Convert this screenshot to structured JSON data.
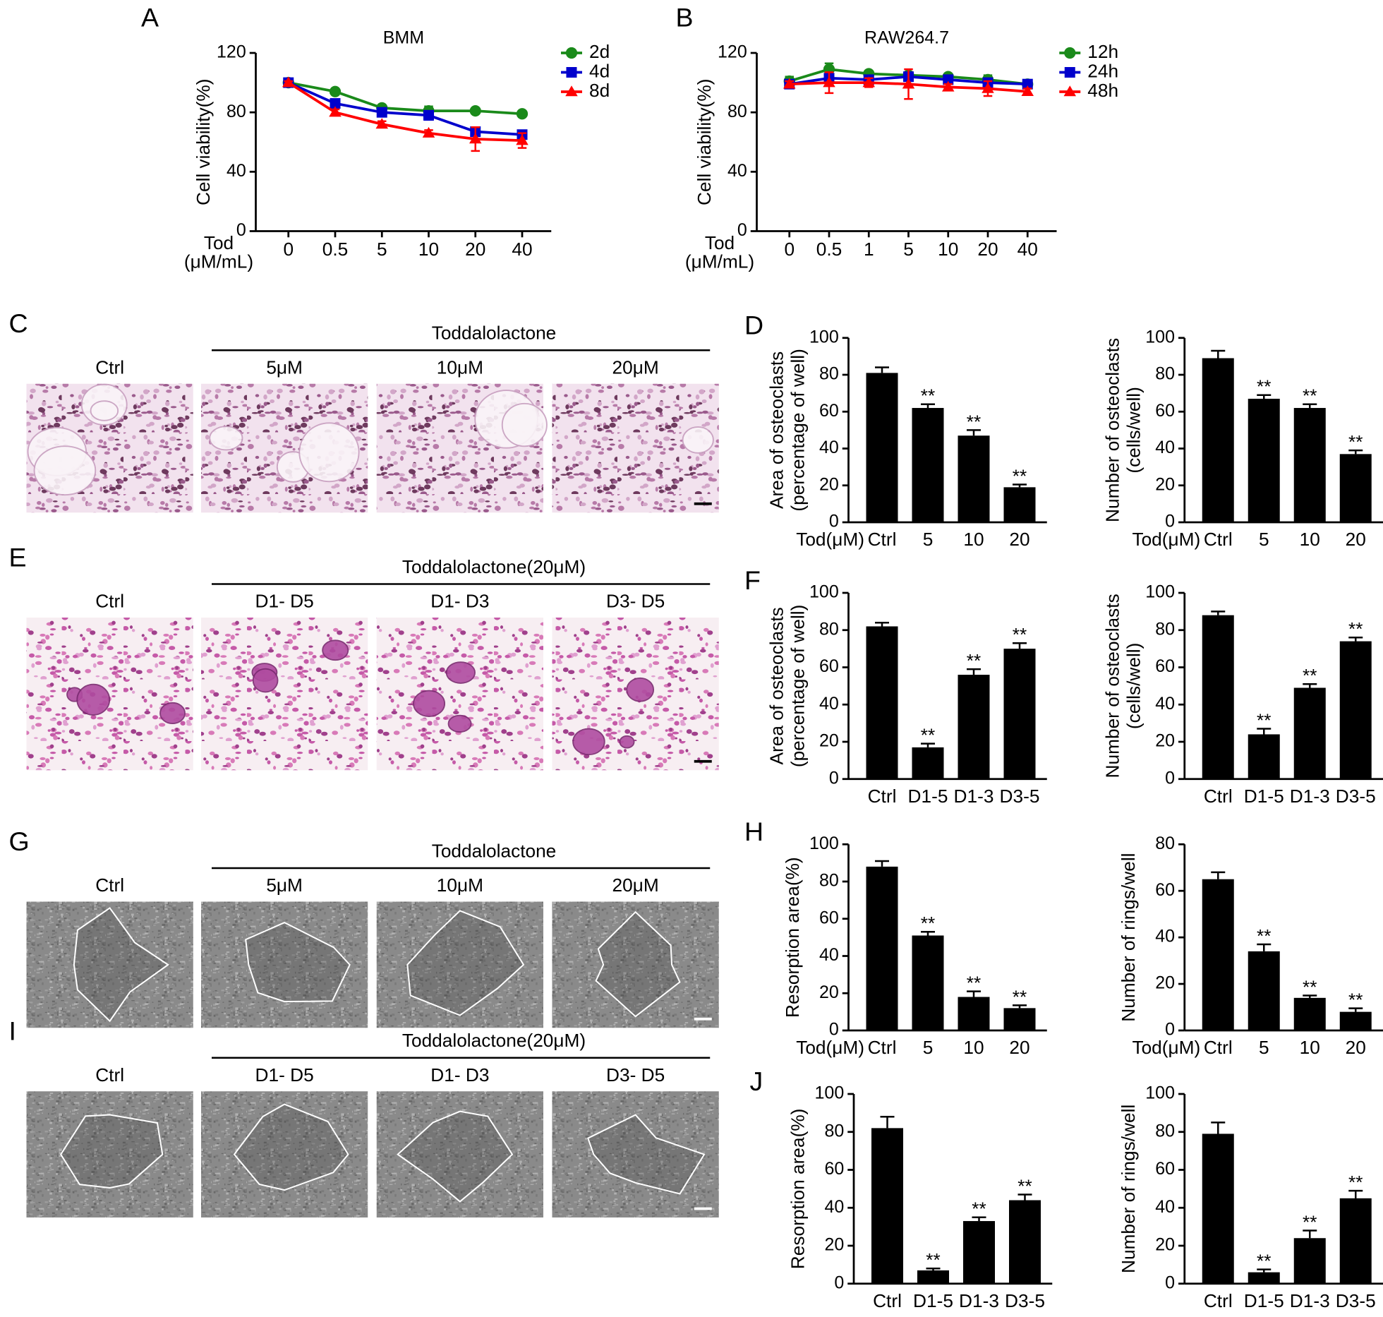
{
  "chart_data": [
    {
      "type": "line",
      "panel": "A",
      "title": "BMM",
      "ylabel": "Cell viability(%)",
      "xlabel_lines": [
        "Tod",
        "(μM/mL)"
      ],
      "categories": [
        "0",
        "0.5",
        "5",
        "10",
        "20",
        "40"
      ],
      "ylim": [
        0,
        120
      ],
      "yticks": [
        0,
        40,
        80,
        120
      ],
      "series": [
        {
          "name": "2d",
          "color": "#1a8a1a",
          "marker": "circle",
          "values": [
            100,
            94,
            83,
            81,
            81,
            79
          ],
          "errors": [
            1,
            1,
            1,
            3,
            1,
            1
          ]
        },
        {
          "name": "4d",
          "color": "#0000cc",
          "marker": "square",
          "values": [
            100,
            86,
            80,
            78,
            67,
            65
          ],
          "errors": [
            1,
            2,
            2,
            3,
            3,
            2
          ]
        },
        {
          "name": "8d",
          "color": "#ff0000",
          "marker": "triangle",
          "values": [
            100,
            80,
            72,
            66,
            62,
            61
          ],
          "errors": [
            1,
            2,
            2,
            2,
            8,
            5
          ]
        }
      ]
    },
    {
      "type": "line",
      "panel": "B",
      "title": "RAW264.7",
      "ylabel": "Cell viability(%)",
      "xlabel_lines": [
        "Tod",
        "(μM/mL)"
      ],
      "categories": [
        "0",
        "0.5",
        "1",
        "5",
        "10",
        "20",
        "40"
      ],
      "ylim": [
        0,
        120
      ],
      "yticks": [
        0,
        40,
        80,
        120
      ],
      "series": [
        {
          "name": "12h",
          "color": "#1a8a1a",
          "marker": "circle",
          "values": [
            101,
            109,
            106,
            105,
            104,
            102,
            99
          ],
          "errors": [
            3,
            4,
            2,
            2,
            2,
            3,
            1
          ]
        },
        {
          "name": "24h",
          "color": "#0000cc",
          "marker": "square",
          "values": [
            99,
            103,
            102,
            104,
            102,
            100,
            99
          ],
          "errors": [
            2,
            3,
            2,
            2,
            2,
            2,
            1
          ]
        },
        {
          "name": "48h",
          "color": "#ff0000",
          "marker": "triangle",
          "values": [
            99,
            100,
            100,
            99,
            97,
            96,
            94
          ],
          "errors": [
            2,
            7,
            3,
            10,
            2,
            5,
            2
          ]
        }
      ]
    },
    {
      "type": "bar",
      "panel": "D",
      "ylabel_lines": [
        "Area of osteoclasts",
        "(percentage of well)"
      ],
      "xlabel": "Tod(μM)",
      "categories": [
        "Ctrl",
        "5",
        "10",
        "20"
      ],
      "values": [
        81,
        62,
        47,
        19
      ],
      "errors": [
        3,
        2,
        3,
        1.5
      ],
      "significance": [
        null,
        "**",
        "**",
        "**"
      ],
      "color": "#000000",
      "ylim": [
        0,
        100
      ],
      "yticks": [
        0,
        20,
        40,
        60,
        80,
        100
      ]
    },
    {
      "type": "bar",
      "ylabel_lines": [
        "Number of osteoclasts",
        "(cells/well)"
      ],
      "xlabel": "Tod(μM)",
      "categories": [
        "Ctrl",
        "5",
        "10",
        "20"
      ],
      "values": [
        89,
        67,
        62,
        37
      ],
      "errors": [
        4,
        2,
        2,
        2
      ],
      "significance": [
        null,
        "**",
        "**",
        "**"
      ],
      "color": "#000000",
      "ylim": [
        0,
        100
      ],
      "yticks": [
        0,
        20,
        40,
        60,
        80,
        100
      ]
    },
    {
      "type": "bar",
      "panel": "F",
      "ylabel_lines": [
        "Area of osteoclasts",
        "(percentage of well)"
      ],
      "categories": [
        "Ctrl",
        "D1-5",
        "D1-3",
        "D3-5"
      ],
      "values": [
        82,
        17,
        56,
        70
      ],
      "errors": [
        2,
        2,
        3,
        3
      ],
      "significance": [
        null,
        "**",
        "**",
        "**"
      ],
      "color": "#000000",
      "ylim": [
        0,
        100
      ],
      "yticks": [
        0,
        20,
        40,
        60,
        80,
        100
      ]
    },
    {
      "type": "bar",
      "ylabel_lines": [
        "Number of osteoclasts",
        "(cells/well)"
      ],
      "categories": [
        "Ctrl",
        "D1-5",
        "D1-3",
        "D3-5"
      ],
      "values": [
        88,
        24,
        49,
        74
      ],
      "errors": [
        2,
        3,
        2,
        2
      ],
      "significance": [
        null,
        "**",
        "**",
        "**"
      ],
      "color": "#000000",
      "ylim": [
        0,
        100
      ],
      "yticks": [
        0,
        20,
        40,
        60,
        80,
        100
      ]
    },
    {
      "type": "bar",
      "panel": "H",
      "ylabel_lines": [
        "Resorption area(%)"
      ],
      "xlabel": "Tod(μM)",
      "categories": [
        "Ctrl",
        "5",
        "10",
        "20"
      ],
      "values": [
        88,
        51,
        18,
        12
      ],
      "errors": [
        3,
        2,
        3,
        1.5
      ],
      "significance": [
        null,
        "**",
        "**",
        "**"
      ],
      "color": "#000000",
      "ylim": [
        0,
        100
      ],
      "yticks": [
        0,
        20,
        40,
        60,
        80,
        100
      ]
    },
    {
      "type": "bar",
      "ylabel_lines": [
        "Number of rings/well"
      ],
      "xlabel": "Tod(μM)",
      "categories": [
        "Ctrl",
        "5",
        "10",
        "20"
      ],
      "values": [
        65,
        34,
        14,
        8
      ],
      "errors": [
        3,
        3,
        1,
        1.5
      ],
      "significance": [
        null,
        "**",
        "**",
        "**"
      ],
      "color": "#000000",
      "ylim": [
        0,
        80
      ],
      "yticks": [
        0,
        20,
        40,
        60,
        80
      ]
    },
    {
      "type": "bar",
      "panel": "J",
      "ylabel_lines": [
        "Resorption area(%)"
      ],
      "categories": [
        "Ctrl",
        "D1-5",
        "D1-3",
        "D3-5"
      ],
      "values": [
        82,
        7,
        33,
        44
      ],
      "errors": [
        6,
        1,
        2,
        3
      ],
      "significance": [
        null,
        "**",
        "**",
        "**"
      ],
      "color": "#000000",
      "ylim": [
        0,
        100
      ],
      "yticks": [
        0,
        20,
        40,
        60,
        80,
        100
      ]
    },
    {
      "type": "bar",
      "ylabel_lines": [
        "Number of rings/well"
      ],
      "categories": [
        "Ctrl",
        "D1-5",
        "D1-3",
        "D3-5"
      ],
      "values": [
        79,
        6,
        24,
        45
      ],
      "errors": [
        6,
        1.5,
        4,
        4
      ],
      "significance": [
        null,
        "**",
        "**",
        "**"
      ],
      "color": "#000000",
      "ylim": [
        0,
        100
      ],
      "yticks": [
        0,
        20,
        40,
        60,
        80,
        100
      ]
    }
  ],
  "image_rows": [
    {
      "panel": "C",
      "group": "Toddalolactone",
      "columns": [
        "Ctrl",
        "5μM",
        "10μM",
        "20μM"
      ]
    },
    {
      "panel": "E",
      "group": "Toddalolactone(20μM)",
      "columns": [
        "Ctrl",
        "D1- D5",
        "D1- D3",
        "D3- D5"
      ]
    },
    {
      "panel": "G",
      "group": "Toddalolactone",
      "columns": [
        "Ctrl",
        "5μM",
        "10μM",
        "20μM"
      ]
    },
    {
      "panel": "I",
      "group": "Toddalolactone(20μM)",
      "columns": [
        "Ctrl",
        "D1- D5",
        "D1- D3",
        "D3- D5"
      ]
    }
  ]
}
